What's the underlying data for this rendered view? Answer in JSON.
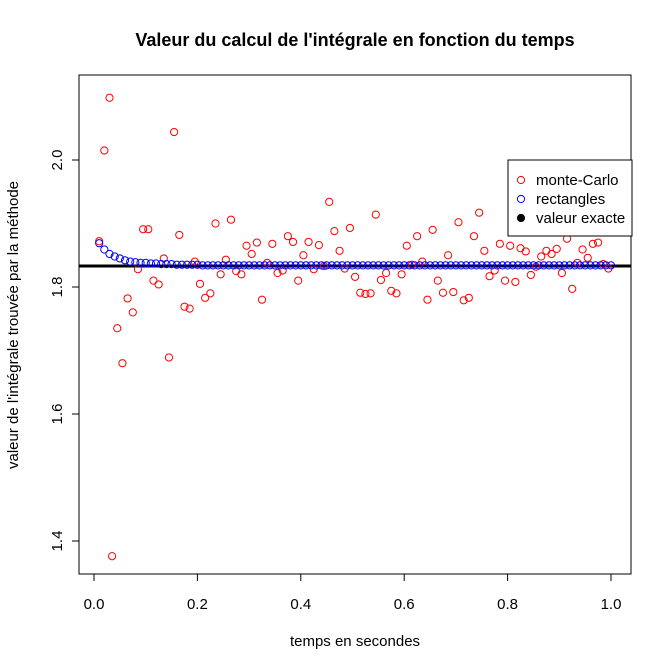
{
  "chart_data": {
    "type": "scatter",
    "title": "Valeur du calcul de l'intégrale en fonction du temps",
    "xlabel": "temps en secondes",
    "ylabel": "valeur de l'intégrale trouvée par la méthode",
    "xlim": [
      0.0,
      1.0
    ],
    "ylim": [
      1.37,
      2.11
    ],
    "x_ticks": [
      0.0,
      0.2,
      0.4,
      0.6,
      0.8,
      1.0
    ],
    "x_tick_labels": [
      "0.0",
      "0.2",
      "0.4",
      "0.6",
      "0.8",
      "1.0"
    ],
    "y_ticks": [
      1.4,
      1.6,
      1.8,
      2.0
    ],
    "y_tick_labels": [
      "1.4",
      "1.6",
      "1.8",
      "2.0"
    ],
    "grid": false,
    "legend_position": "right",
    "series": [
      {
        "name": "monte-Carlo",
        "color": "#ff0000",
        "marker": "open-circle",
        "x": [
          0.01,
          0.02,
          0.03,
          0.035,
          0.045,
          0.055,
          0.065,
          0.075,
          0.085,
          0.095,
          0.105,
          0.115,
          0.125,
          0.135,
          0.145,
          0.155,
          0.165,
          0.175,
          0.185,
          0.195,
          0.205,
          0.215,
          0.225,
          0.235,
          0.245,
          0.255,
          0.265,
          0.275,
          0.285,
          0.295,
          0.305,
          0.315,
          0.325,
          0.335,
          0.345,
          0.355,
          0.365,
          0.375,
          0.385,
          0.395,
          0.405,
          0.415,
          0.425,
          0.435,
          0.445,
          0.455,
          0.465,
          0.475,
          0.485,
          0.495,
          0.505,
          0.515,
          0.525,
          0.535,
          0.545,
          0.555,
          0.565,
          0.575,
          0.585,
          0.595,
          0.605,
          0.615,
          0.625,
          0.635,
          0.645,
          0.655,
          0.665,
          0.675,
          0.685,
          0.695,
          0.705,
          0.715,
          0.725,
          0.735,
          0.745,
          0.755,
          0.765,
          0.775,
          0.785,
          0.795,
          0.805,
          0.815,
          0.825,
          0.835,
          0.845,
          0.855,
          0.865,
          0.875,
          0.885,
          0.895,
          0.905,
          0.915,
          0.925,
          0.935,
          0.945,
          0.955,
          0.965,
          0.975,
          0.985,
          0.995
        ],
        "y": [
          1.872,
          2.015,
          2.098,
          1.376,
          1.735,
          1.68,
          1.782,
          1.76,
          1.828,
          1.891,
          1.891,
          1.81,
          1.804,
          1.845,
          1.689,
          2.044,
          1.882,
          1.769,
          1.766,
          1.84,
          1.805,
          1.783,
          1.79,
          1.9,
          1.82,
          1.843,
          1.906,
          1.825,
          1.82,
          1.865,
          1.852,
          1.87,
          1.78,
          1.838,
          1.868,
          1.822,
          1.826,
          1.88,
          1.871,
          1.81,
          1.85,
          1.871,
          1.828,
          1.866,
          1.833,
          1.934,
          1.888,
          1.857,
          1.829,
          1.893,
          1.816,
          1.791,
          1.789,
          1.79,
          1.914,
          1.811,
          1.822,
          1.794,
          1.79,
          1.82,
          1.865,
          1.835,
          1.88,
          1.84,
          1.78,
          1.89,
          1.81,
          1.791,
          1.85,
          1.792,
          1.902,
          1.779,
          1.783,
          1.88,
          1.917,
          1.857,
          1.817,
          1.826,
          1.868,
          1.81,
          1.865,
          1.808,
          1.861,
          1.856,
          1.819,
          1.832,
          1.848,
          1.857,
          1.852,
          1.86,
          1.822,
          1.876,
          1.797,
          1.838,
          1.859,
          1.846,
          1.868,
          1.87,
          1.836,
          1.829
        ]
      },
      {
        "name": "rectangles",
        "color": "#0000ff",
        "marker": "open-circle",
        "x": [
          0.01,
          0.02,
          0.03,
          0.04,
          0.05,
          0.06,
          0.07,
          0.08,
          0.09,
          0.1,
          0.11,
          0.12,
          0.13,
          0.14,
          0.15,
          0.16,
          0.17,
          0.18,
          0.19,
          0.2,
          0.21,
          0.22,
          0.23,
          0.24,
          0.25,
          0.26,
          0.27,
          0.28,
          0.29,
          0.3,
          0.31,
          0.32,
          0.33,
          0.34,
          0.35,
          0.36,
          0.37,
          0.38,
          0.39,
          0.4,
          0.41,
          0.42,
          0.43,
          0.44,
          0.45,
          0.46,
          0.47,
          0.48,
          0.49,
          0.5,
          0.51,
          0.52,
          0.53,
          0.54,
          0.55,
          0.56,
          0.57,
          0.58,
          0.59,
          0.6,
          0.61,
          0.62,
          0.63,
          0.64,
          0.65,
          0.66,
          0.67,
          0.68,
          0.69,
          0.7,
          0.71,
          0.72,
          0.73,
          0.74,
          0.75,
          0.76,
          0.77,
          0.78,
          0.79,
          0.8,
          0.81,
          0.82,
          0.83,
          0.84,
          0.85,
          0.86,
          0.87,
          0.88,
          0.89,
          0.9,
          0.91,
          0.92,
          0.93,
          0.94,
          0.95,
          0.96,
          0.97,
          0.98,
          0.99,
          1.0
        ],
        "y": [
          1.869,
          1.859,
          1.852,
          1.848,
          1.845,
          1.842,
          1.84,
          1.839,
          1.838,
          1.838,
          1.837,
          1.837,
          1.836,
          1.836,
          1.836,
          1.835,
          1.835,
          1.835,
          1.835,
          1.835,
          1.834,
          1.834,
          1.834,
          1.834,
          1.834,
          1.834,
          1.834,
          1.834,
          1.834,
          1.834,
          1.834,
          1.834,
          1.834,
          1.834,
          1.834,
          1.834,
          1.834,
          1.834,
          1.834,
          1.834,
          1.834,
          1.834,
          1.834,
          1.834,
          1.834,
          1.834,
          1.834,
          1.834,
          1.834,
          1.834,
          1.834,
          1.834,
          1.834,
          1.834,
          1.834,
          1.834,
          1.834,
          1.834,
          1.834,
          1.834,
          1.834,
          1.834,
          1.834,
          1.834,
          1.834,
          1.834,
          1.834,
          1.834,
          1.834,
          1.834,
          1.834,
          1.834,
          1.834,
          1.834,
          1.834,
          1.834,
          1.834,
          1.834,
          1.834,
          1.834,
          1.834,
          1.834,
          1.834,
          1.834,
          1.834,
          1.834,
          1.834,
          1.834,
          1.834,
          1.834,
          1.834,
          1.834,
          1.834,
          1.834,
          1.834,
          1.834,
          1.834,
          1.834,
          1.834,
          1.834
        ]
      },
      {
        "name": "valeur exacte",
        "color": "#000000",
        "marker": "line",
        "y": 1.833
      }
    ]
  }
}
